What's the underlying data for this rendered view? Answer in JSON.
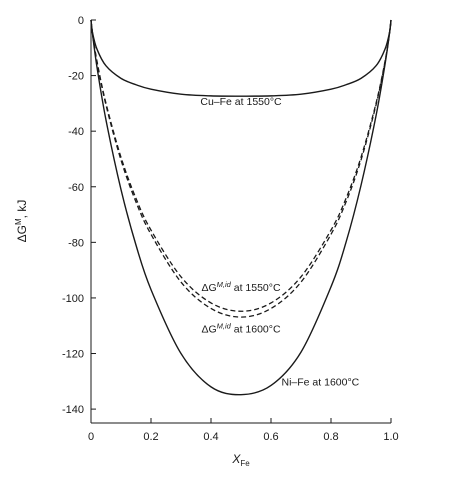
{
  "chart_data": {
    "type": "line",
    "xlabel": "X",
    "xlabel_sub": "Fe",
    "ylabel": "ΔG",
    "ylabel_sup": "M",
    "ylabel_unit": ", kJ",
    "xlim": [
      0,
      1.0
    ],
    "ylim": [
      -145,
      0
    ],
    "x_ticks": [
      0,
      0.2,
      0.4,
      0.6,
      0.8,
      1.0
    ],
    "x_tick_labels": [
      "0",
      "0.2",
      "0.4",
      "0.6",
      "0.8",
      "1.0"
    ],
    "y_ticks": [
      0,
      -20,
      -40,
      -60,
      -80,
      -100,
      -120,
      -140
    ],
    "y_tick_labels": [
      "0",
      "-20",
      "-40",
      "-60",
      "-80",
      "-100",
      "-120",
      "-140"
    ],
    "grid": false,
    "legend": "none",
    "series": [
      {
        "id": "cufe",
        "style": "solid",
        "x": [
          0,
          0.005,
          0.02,
          0.05,
          0.1,
          0.15,
          0.2,
          0.3,
          0.4,
          0.5,
          0.6,
          0.7,
          0.8,
          0.85,
          0.9,
          0.95,
          0.98,
          0.995,
          1.0
        ],
        "values": [
          0,
          -4.5,
          -10.5,
          -16.5,
          -21.0,
          -23.3,
          -24.9,
          -26.7,
          -27.3,
          -27.4,
          -27.3,
          -26.7,
          -24.9,
          -23.3,
          -21.0,
          -16.5,
          -10.5,
          -4.5,
          0
        ]
      },
      {
        "id": "ideal1550",
        "style": "dashed",
        "x": [
          0,
          0.005,
          0.02,
          0.05,
          0.1,
          0.15,
          0.2,
          0.3,
          0.4,
          0.5,
          0.6,
          0.7,
          0.8,
          0.85,
          0.9,
          0.95,
          0.98,
          0.995,
          1.0
        ],
        "values": [
          0,
          -4.7,
          -14.9,
          -30.0,
          -49.4,
          -64.2,
          -75.6,
          -92.4,
          -101.8,
          -104.8,
          -101.8,
          -92.4,
          -75.6,
          -64.2,
          -49.4,
          -30.0,
          -14.9,
          -4.7,
          0
        ]
      },
      {
        "id": "ideal1600",
        "style": "dashed",
        "x": [
          0,
          0.005,
          0.02,
          0.05,
          0.1,
          0.15,
          0.2,
          0.3,
          0.4,
          0.5,
          0.6,
          0.7,
          0.8,
          0.85,
          0.9,
          0.95,
          0.98,
          0.995,
          1.0
        ],
        "values": [
          0,
          -4.8,
          -15.2,
          -30.6,
          -50.4,
          -65.5,
          -77.1,
          -94.3,
          -103.8,
          -106.9,
          -103.8,
          -94.3,
          -77.1,
          -65.5,
          -50.4,
          -30.6,
          -15.2,
          -4.8,
          0
        ]
      },
      {
        "id": "nife",
        "style": "solid",
        "x": [
          0,
          0.005,
          0.02,
          0.05,
          0.1,
          0.15,
          0.2,
          0.3,
          0.4,
          0.5,
          0.6,
          0.7,
          0.8,
          0.85,
          0.9,
          0.95,
          0.98,
          0.995,
          1.0
        ],
        "values": [
          0,
          -5.0,
          -17.0,
          -36.0,
          -61.0,
          -81.0,
          -97.0,
          -120.0,
          -132.0,
          -134.8,
          -131.5,
          -119.5,
          -96.0,
          -80.0,
          -59.5,
          -34.5,
          -16.0,
          -4.8,
          0
        ]
      }
    ],
    "annotations": [
      {
        "id": "cufe-label",
        "parts": [
          {
            "t": "Cu–Fe at 1550°C"
          }
        ],
        "x": 0.5,
        "y": -30.5,
        "anchor": "middle"
      },
      {
        "id": "ideal1550-label",
        "parts": [
          {
            "t": "ΔG"
          },
          {
            "t": "M,id",
            "sup": true
          },
          {
            "t": " at 1550°C"
          }
        ],
        "x": 0.5,
        "y": -97.5,
        "anchor": "middle"
      },
      {
        "id": "ideal1600-label",
        "parts": [
          {
            "t": "ΔG"
          },
          {
            "t": "M,id",
            "sup": true
          },
          {
            "t": " at 1600°C"
          }
        ],
        "x": 0.5,
        "y": -112.5,
        "anchor": "middle"
      },
      {
        "id": "nife-label",
        "parts": [
          {
            "t": "Ni–Fe at 1600°C"
          }
        ],
        "x": 0.635,
        "y": -131.5,
        "anchor": "start"
      }
    ]
  }
}
